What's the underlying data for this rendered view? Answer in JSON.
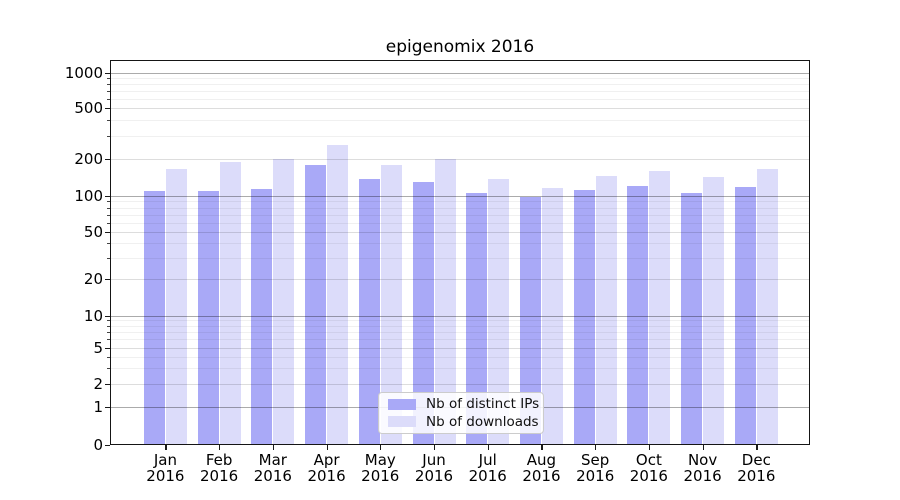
{
  "title": "epigenomix 2016",
  "chart_data": {
    "type": "bar",
    "title": "epigenomix 2016",
    "categories": [
      {
        "month": "Jan",
        "year": "2016"
      },
      {
        "month": "Feb",
        "year": "2016"
      },
      {
        "month": "Mar",
        "year": "2016"
      },
      {
        "month": "Apr",
        "year": "2016"
      },
      {
        "month": "May",
        "year": "2016"
      },
      {
        "month": "Jun",
        "year": "2016"
      },
      {
        "month": "Jul",
        "year": "2016"
      },
      {
        "month": "Aug",
        "year": "2016"
      },
      {
        "month": "Sep",
        "year": "2016"
      },
      {
        "month": "Oct",
        "year": "2016"
      },
      {
        "month": "Nov",
        "year": "2016"
      },
      {
        "month": "Dec",
        "year": "2016"
      }
    ],
    "series": [
      {
        "name": "Nb of distinct IPs",
        "key": "distinct-ips",
        "color": "#a9a9f7",
        "values": [
          110,
          110,
          115,
          180,
          138,
          130,
          105,
          98,
          112,
          120,
          105,
          118
        ]
      },
      {
        "name": "Nb of downloads",
        "key": "downloads",
        "color": "#dcdcfa",
        "values": [
          165,
          190,
          200,
          255,
          180,
          200,
          138,
          116,
          146,
          160,
          142,
          165
        ]
      }
    ],
    "yscale": "symlog",
    "yticks": [
      1000,
      500,
      200,
      100,
      50,
      20,
      10,
      5,
      2,
      1,
      0
    ],
    "major_gridline_values": [
      1,
      10,
      100,
      1000
    ],
    "minor_gridline_values": [
      3,
      4,
      6,
      7,
      8,
      9,
      30,
      40,
      60,
      70,
      80,
      90,
      300,
      400,
      600,
      700,
      800,
      900
    ],
    "ylim": [
      0,
      1300
    ],
    "grid": true,
    "legend_position": "lower center",
    "xlabel": "",
    "ylabel": ""
  }
}
